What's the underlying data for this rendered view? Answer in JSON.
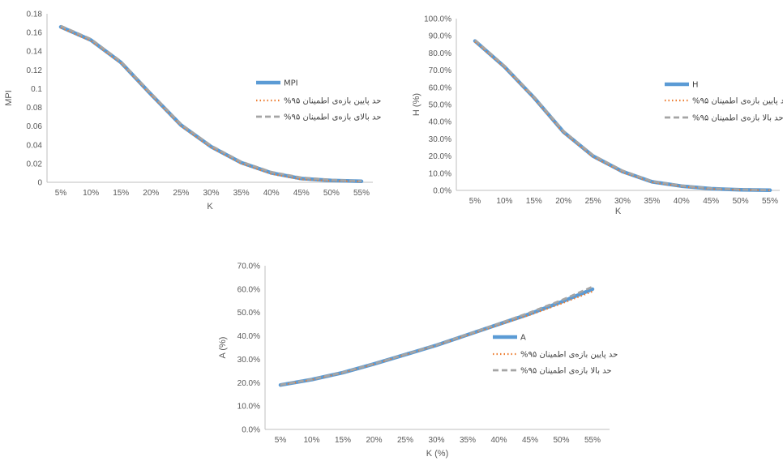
{
  "colors": {
    "main": "#5b9bd5",
    "lower": "#ed7d31",
    "upper": "#a5a5a5",
    "axis": "#bfbfbf",
    "text": "#595959"
  },
  "chart_data": [
    {
      "type": "line",
      "xlabel": "K",
      "ylabel": "MPI",
      "x": [
        "5%",
        "10%",
        "15%",
        "20%",
        "25%",
        "30%",
        "35%",
        "40%",
        "45%",
        "50%",
        "55%"
      ],
      "ylim": [
        0,
        0.18
      ],
      "yticks": [
        "0",
        "0.02",
        "0.04",
        "0.06",
        "0.08",
        "0.1",
        "0.12",
        "0.14",
        "0.16",
        "0.18"
      ],
      "grid": false,
      "legend": "right",
      "series": [
        {
          "name": "MPI",
          "values": [
            0.166,
            0.152,
            0.128,
            0.094,
            0.061,
            0.038,
            0.021,
            0.01,
            0.004,
            0.002,
            0.001
          ]
        },
        {
          "name": "حد پایین بازه‌ی اطمینان ۹۵%",
          "values": [
            0.165,
            0.151,
            0.127,
            0.093,
            0.06,
            0.037,
            0.02,
            0.009,
            0.003,
            0.0015,
            0.0008
          ]
        },
        {
          "name": "حد بالای بازه‌ی اطمینان ۹۵%",
          "values": [
            0.167,
            0.153,
            0.129,
            0.095,
            0.062,
            0.039,
            0.022,
            0.011,
            0.005,
            0.0025,
            0.0012
          ]
        }
      ]
    },
    {
      "type": "line",
      "xlabel": "K",
      "ylabel": "H (%)",
      "x": [
        "5%",
        "10%",
        "15%",
        "20%",
        "25%",
        "30%",
        "35%",
        "40%",
        "45%",
        "50%",
        "55%"
      ],
      "ylim": [
        0,
        100
      ],
      "yticks": [
        "0.0%",
        "10.0%",
        "20.0%",
        "30.0%",
        "40.0%",
        "50.0%",
        "60.0%",
        "70.0%",
        "80.0%",
        "90.0%",
        "100.0%"
      ],
      "grid": false,
      "legend": "right",
      "series": [
        {
          "name": "H",
          "values": [
            87,
            72,
            54,
            34,
            20,
            11,
            5,
            2.5,
            1,
            0.4,
            0.1
          ]
        },
        {
          "name": "د پایین بازه‌ی اطمینان ۹۵%",
          "values": [
            86.5,
            71.5,
            53.5,
            33.5,
            19.5,
            10.5,
            4.7,
            2.2,
            0.8,
            0.3,
            0.05
          ]
        },
        {
          "name": "حد بالا بازه‌ی اطمینان ۹۵%",
          "values": [
            87.5,
            72.5,
            54.5,
            34.5,
            20.5,
            11.5,
            5.3,
            2.8,
            1.2,
            0.5,
            0.15
          ]
        }
      ]
    },
    {
      "type": "line",
      "xlabel": "K  (%)",
      "ylabel": "A (%)",
      "x": [
        "5%",
        "10%",
        "15%",
        "20%",
        "25%",
        "30%",
        "35%",
        "40%",
        "45%",
        "50%",
        "55%"
      ],
      "ylim": [
        0,
        70
      ],
      "yticks": [
        "0.0%",
        "10.0%",
        "20.0%",
        "30.0%",
        "40.0%",
        "50.0%",
        "60.0%",
        "70.0%"
      ],
      "grid": false,
      "legend": "right",
      "series": [
        {
          "name": "A",
          "values": [
            19,
            21.3,
            24.3,
            28,
            32,
            36,
            40.5,
            45,
            49.5,
            54.5,
            60
          ]
        },
        {
          "name": "حد پایین بازه‌ی اطمینان ۹۵%",
          "values": [
            18.9,
            21.2,
            24.2,
            27.9,
            31.9,
            35.9,
            40.3,
            44.7,
            49,
            53.8,
            59
          ]
        },
        {
          "name": "حد بالا بازه‌ی اطمینان ۹۵%",
          "values": [
            19.1,
            21.4,
            24.4,
            28.1,
            32.1,
            36.1,
            40.7,
            45.3,
            50,
            55.2,
            61
          ]
        }
      ]
    }
  ]
}
